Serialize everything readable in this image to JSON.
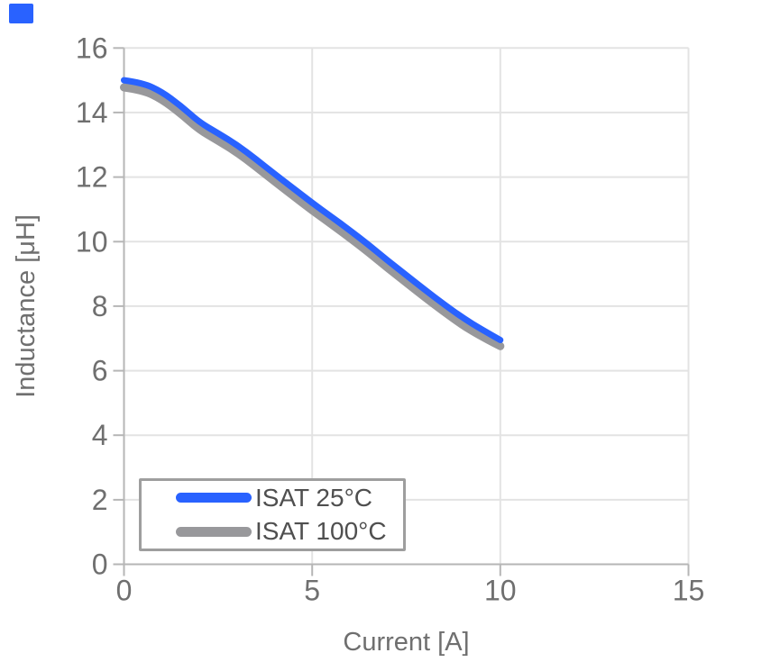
{
  "page": {
    "background": "#ffffff"
  },
  "corner_marker": {
    "present": true
  },
  "colors": {
    "accent_blue": "#2962ff",
    "series_gray": "#98989b",
    "grid": "#e3e3e3",
    "axis": "#b6b6b6",
    "tick_text": "#6f6f6f",
    "axis_title_text": "#6f6f6f",
    "legend_border": "#9e9e9e",
    "legend_text": "#4f4f4f"
  },
  "chart_data": {
    "type": "line",
    "title": "",
    "xlabel": "Current [A]",
    "ylabel": "Inductance [μH]",
    "xlim": [
      0,
      15
    ],
    "ylim": [
      0,
      16
    ],
    "x_ticks": [
      0,
      5,
      10,
      15
    ],
    "y_ticks": [
      0,
      2,
      4,
      6,
      8,
      10,
      12,
      14,
      16
    ],
    "grid": true,
    "legend_position": "bottom-left",
    "series": [
      {
        "name": "ISAT 25°C",
        "color": "#2962ff",
        "stroke_width": 7,
        "x": [
          0,
          0.5,
          1,
          1.5,
          2,
          2.5,
          3,
          3.5,
          4,
          4.5,
          5,
          5.5,
          6,
          6.5,
          7,
          7.5,
          8,
          8.5,
          9,
          9.5,
          10
        ],
        "y": [
          15.0,
          14.92,
          14.65,
          14.22,
          13.7,
          13.36,
          13.0,
          12.56,
          12.1,
          11.65,
          11.2,
          10.78,
          10.35,
          9.9,
          9.42,
          8.96,
          8.5,
          8.06,
          7.64,
          7.28,
          6.95
        ]
      },
      {
        "name": "ISAT 100°C",
        "color": "#98989b",
        "stroke_width": 9,
        "x": [
          0,
          0.5,
          1,
          1.5,
          2,
          2.5,
          3,
          3.5,
          4,
          4.5,
          5,
          5.5,
          6,
          6.5,
          7,
          7.5,
          8,
          8.5,
          9,
          9.5,
          10
        ],
        "y": [
          14.78,
          14.7,
          14.42,
          13.98,
          13.47,
          13.13,
          12.77,
          12.33,
          11.87,
          11.42,
          10.97,
          10.55,
          10.12,
          9.67,
          9.19,
          8.73,
          8.27,
          7.83,
          7.41,
          7.06,
          6.76
        ]
      }
    ]
  }
}
